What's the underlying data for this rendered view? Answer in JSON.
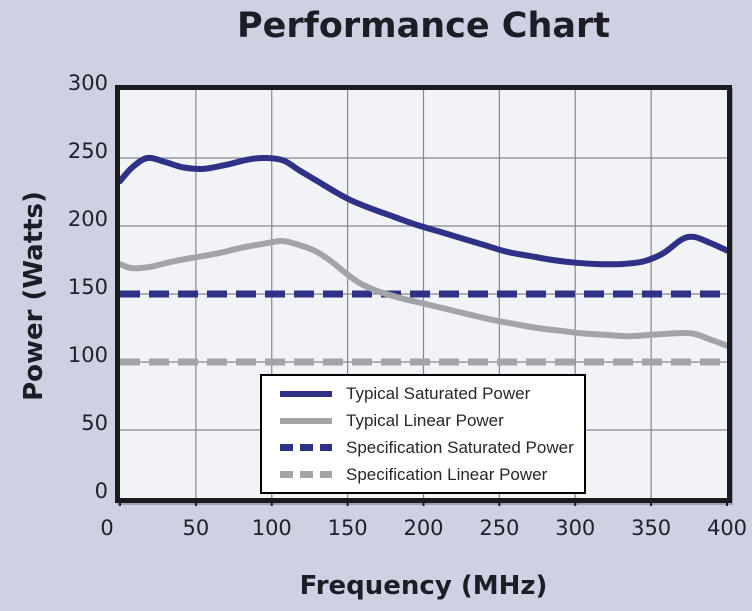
{
  "title": "Performance Chart",
  "colors": {
    "background": "#cdd1e2",
    "plot_background": "#f2f3f7",
    "grid": "#85878f",
    "border": "#1a1a1f",
    "shadow": "#9aa0b8",
    "navy": "#2e3185",
    "gray": "#a3a4a8"
  },
  "chart_data": {
    "type": "line",
    "title": "Performance Chart",
    "xlabel": "Frequency (MHz)",
    "ylabel": "Power (Watts)",
    "xlim": [
      0,
      400
    ],
    "ylim": [
      0,
      300
    ],
    "xticks": [
      0,
      50,
      100,
      150,
      200,
      250,
      300,
      350,
      400
    ],
    "yticks": [
      0,
      50,
      100,
      150,
      200,
      250,
      300
    ],
    "grid": true,
    "legend_position": "inside-bottom-center",
    "series": [
      {
        "name": "Typical Saturated Power",
        "color": "#2e3185",
        "style": "solid",
        "points": [
          [
            0,
            233
          ],
          [
            8,
            243
          ],
          [
            18,
            250
          ],
          [
            30,
            247
          ],
          [
            42,
            243
          ],
          [
            55,
            242
          ],
          [
            70,
            245
          ],
          [
            85,
            249
          ],
          [
            97,
            250
          ],
          [
            108,
            248
          ],
          [
            118,
            241
          ],
          [
            130,
            233
          ],
          [
            142,
            225
          ],
          [
            152,
            219
          ],
          [
            165,
            213
          ],
          [
            180,
            207
          ],
          [
            195,
            201
          ],
          [
            210,
            196
          ],
          [
            225,
            191
          ],
          [
            240,
            186
          ],
          [
            255,
            181
          ],
          [
            270,
            178
          ],
          [
            285,
            175
          ],
          [
            300,
            173
          ],
          [
            315,
            172
          ],
          [
            330,
            172
          ],
          [
            345,
            174
          ],
          [
            358,
            180
          ],
          [
            370,
            190
          ],
          [
            378,
            192
          ],
          [
            388,
            188
          ],
          [
            400,
            182
          ]
        ]
      },
      {
        "name": "Typical Linear Power",
        "color": "#a3a4a8",
        "style": "solid",
        "points": [
          [
            0,
            172
          ],
          [
            8,
            169
          ],
          [
            20,
            170
          ],
          [
            35,
            174
          ],
          [
            50,
            177
          ],
          [
            65,
            180
          ],
          [
            80,
            184
          ],
          [
            95,
            187
          ],
          [
            107,
            189
          ],
          [
            118,
            186
          ],
          [
            128,
            182
          ],
          [
            138,
            175
          ],
          [
            148,
            166
          ],
          [
            158,
            158
          ],
          [
            170,
            152
          ],
          [
            185,
            147
          ],
          [
            200,
            143
          ],
          [
            215,
            139
          ],
          [
            230,
            135
          ],
          [
            245,
            131
          ],
          [
            260,
            128
          ],
          [
            275,
            125
          ],
          [
            290,
            123
          ],
          [
            305,
            121
          ],
          [
            320,
            120
          ],
          [
            335,
            119
          ],
          [
            350,
            120
          ],
          [
            365,
            121
          ],
          [
            377,
            121
          ],
          [
            388,
            117
          ],
          [
            400,
            112
          ]
        ]
      },
      {
        "name": "Specification Saturated Power",
        "color": "#2e3185",
        "style": "dashed",
        "points": [
          [
            0,
            150
          ],
          [
            400,
            150
          ]
        ]
      },
      {
        "name": "Specification Linear Power",
        "color": "#a3a4a8",
        "style": "dashed",
        "points": [
          [
            0,
            100
          ],
          [
            400,
            100
          ]
        ]
      }
    ]
  }
}
